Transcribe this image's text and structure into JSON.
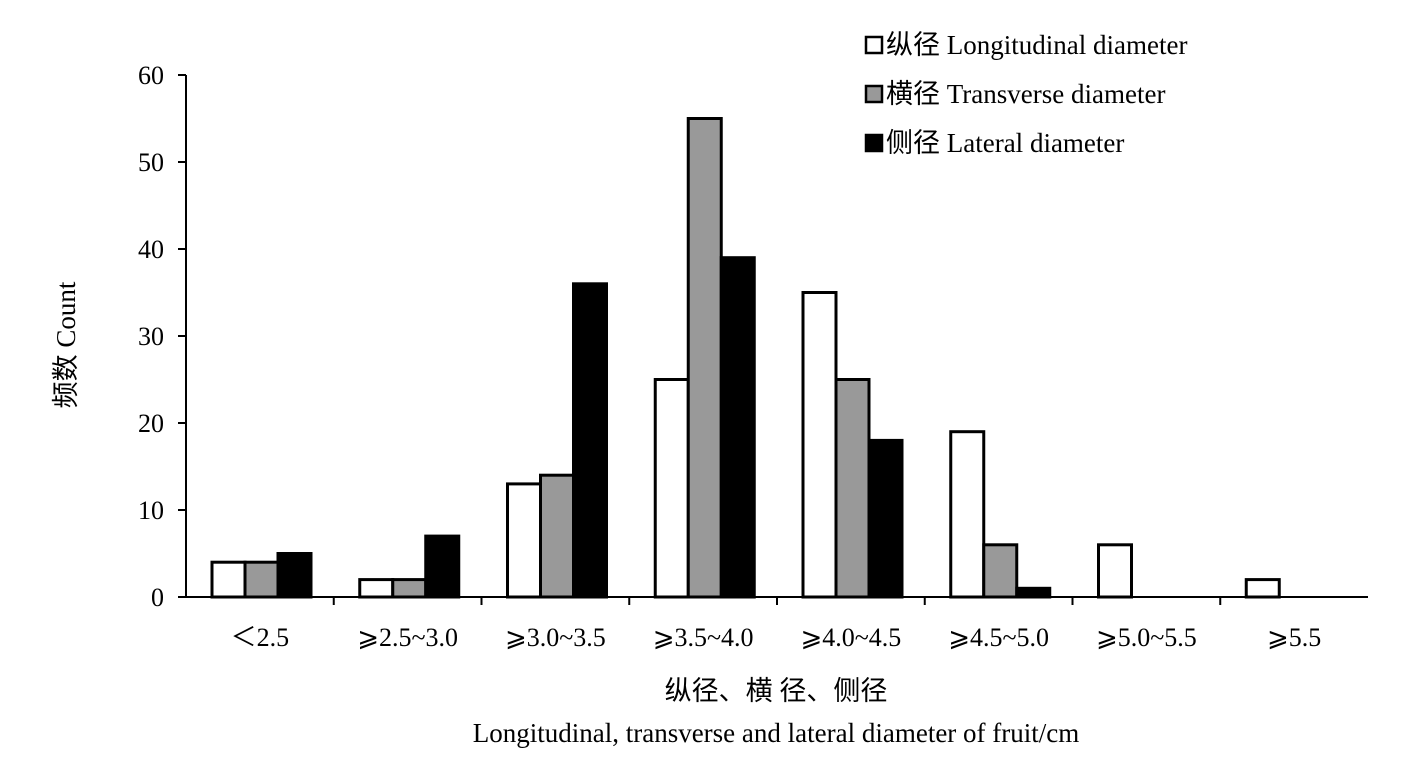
{
  "chart_data": {
    "type": "bar",
    "categories": [
      "<2.5",
      "≥2.5~3.0",
      "≥3.0~3.5",
      "≥3.5~4.0",
      "≥4.0~4.5",
      "≥4.5~5.0",
      "≥5.0~5.5",
      "≥5.5"
    ],
    "category_labels": [
      "＜2.5",
      "⩾2.5~3.0",
      "⩾3.0~3.5",
      "⩾3.5~4.0",
      "⩾4.0~4.5",
      "⩾4.5~5.0",
      "⩾5.0~5.5",
      "⩾5.5"
    ],
    "series": [
      {
        "name": "纵径 Longitudinal diameter",
        "values": [
          4,
          2,
          13,
          25,
          35,
          19,
          6,
          2
        ],
        "color": "#ffffff"
      },
      {
        "name": "横径 Transverse diameter",
        "values": [
          4,
          2,
          14,
          55,
          25,
          6,
          0,
          0
        ],
        "color": "#999999"
      },
      {
        "name": "侧径 Lateral diameter",
        "values": [
          5,
          7,
          36,
          39,
          18,
          1,
          0,
          0
        ],
        "color": "#000000"
      }
    ],
    "ylabel": "频数 Count",
    "xlabel_line1": "纵径、横 径、侧径",
    "xlabel_line2": "Longitudinal,  transverse and lateral diameter of fruit/cm",
    "ylim": [
      0,
      60
    ],
    "yticks": [
      0,
      10,
      20,
      30,
      40,
      50,
      60
    ],
    "grid": false,
    "legend_position": "top-right",
    "bar_outline_color": "#000000"
  }
}
